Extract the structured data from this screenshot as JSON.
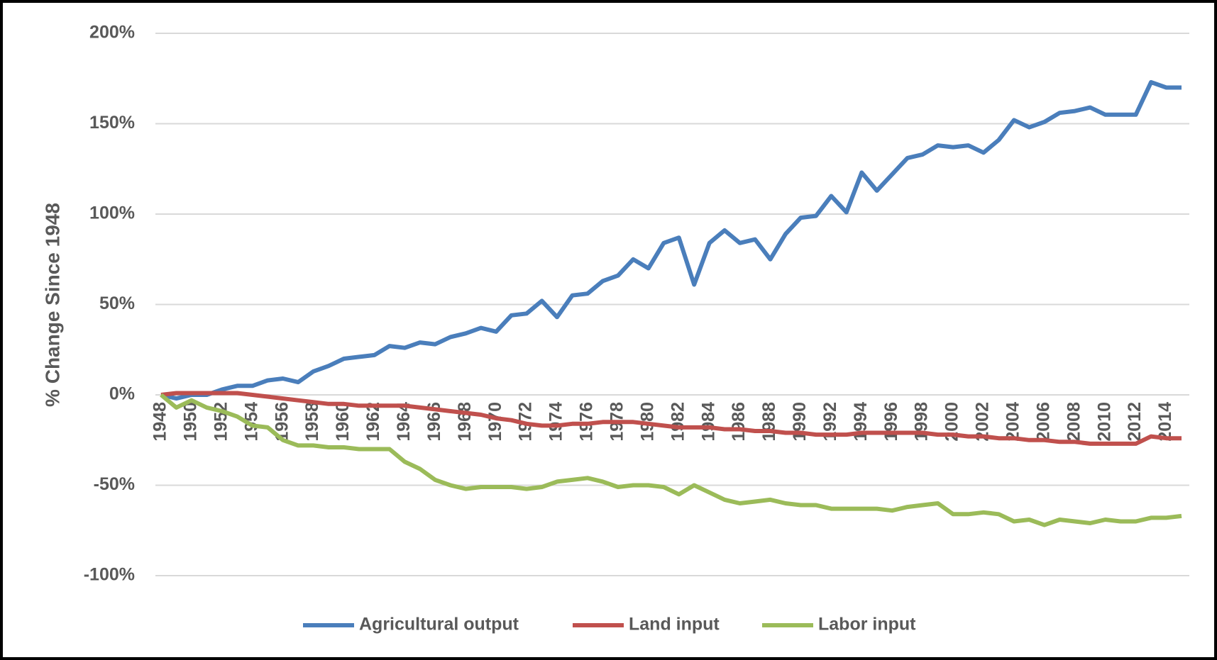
{
  "chart_data": {
    "type": "line",
    "y_label": "% Change Since 1948",
    "categories": [
      "1948",
      null,
      "1950",
      null,
      "1952",
      null,
      "1954",
      null,
      "1956",
      null,
      "1958",
      null,
      "1960",
      null,
      "1962",
      null,
      "1964",
      null,
      "1966",
      null,
      "1968",
      null,
      "1970",
      null,
      "1972",
      null,
      "1974",
      null,
      "1976",
      null,
      "1978",
      null,
      "1980",
      null,
      "1982",
      null,
      "1984",
      null,
      "1986",
      null,
      "1988",
      null,
      "1990",
      null,
      "1992",
      null,
      "1994",
      null,
      "1996",
      null,
      "1998",
      null,
      "2000",
      null,
      "2002",
      null,
      "2004",
      null,
      "2006",
      null,
      "2008",
      null,
      "2010",
      null,
      "2012",
      null,
      "2014",
      null
    ],
    "series": [
      {
        "name": "Agricultural output",
        "color": "#4a7ebb",
        "values": [
          0,
          -2,
          0,
          0,
          3,
          5,
          5,
          8,
          9,
          7,
          13,
          16,
          20,
          21,
          22,
          27,
          26,
          29,
          28,
          32,
          34,
          37,
          35,
          44,
          45,
          52,
          43,
          55,
          56,
          63,
          66,
          75,
          70,
          84,
          87,
          61,
          84,
          91,
          84,
          86,
          75,
          89,
          98,
          99,
          110,
          101,
          123,
          113,
          122,
          131,
          133,
          138,
          137,
          138,
          134,
          141,
          152,
          148,
          151,
          156,
          157,
          159,
          155,
          155,
          155,
          173,
          170,
          170
        ]
      },
      {
        "name": "Land input",
        "color": "#c0504d",
        "values": [
          0,
          1,
          1,
          1,
          1,
          1,
          0,
          -1,
          -2,
          -3,
          -4,
          -5,
          -5,
          -6,
          -6,
          -6,
          -6,
          -7,
          -8,
          -9,
          -10,
          -11,
          -13,
          -14,
          -16,
          -17,
          -17,
          -16,
          -16,
          -15,
          -15,
          -15,
          -16,
          -17,
          -18,
          -18,
          -18,
          -19,
          -19,
          -20,
          -20,
          -21,
          -21,
          -22,
          -22,
          -22,
          -21,
          -21,
          -21,
          -21,
          -21,
          -22,
          -22,
          -23,
          -23,
          -24,
          -24,
          -25,
          -25,
          -26,
          -26,
          -27,
          -27,
          -27,
          -27,
          -23,
          -24,
          -24
        ]
      },
      {
        "name": "Labor input",
        "color": "#9bbb59",
        "values": [
          0,
          -7,
          -3,
          -7,
          -9,
          -12,
          -17,
          -18,
          -25,
          -28,
          -28,
          -29,
          -29,
          -30,
          -30,
          -30,
          -37,
          -41,
          -47,
          -50,
          -52,
          -51,
          -51,
          -51,
          -52,
          -51,
          -48,
          -47,
          -46,
          -48,
          -51,
          -50,
          -50,
          -51,
          -55,
          -50,
          -54,
          -58,
          -60,
          -59,
          -58,
          -60,
          -61,
          -61,
          -63,
          -63,
          -63,
          -63,
          -64,
          -62,
          -61,
          -60,
          -66,
          -66,
          -65,
          -66,
          -70,
          -69,
          -72,
          -69,
          -70,
          -71,
          -69,
          -70,
          -70,
          -68,
          -68,
          -67
        ]
      }
    ],
    "ylim": [
      -100,
      200
    ],
    "yticks": [
      {
        "value": -100,
        "label": "-100%"
      },
      {
        "value": -50,
        "label": "-50%"
      },
      {
        "value": 0,
        "label": "0%"
      },
      {
        "value": 50,
        "label": "50%"
      },
      {
        "value": 100,
        "label": "100%"
      },
      {
        "value": 150,
        "label": "150%"
      },
      {
        "value": 200,
        "label": "200%"
      }
    ],
    "grid": true,
    "legend": "bottom"
  }
}
